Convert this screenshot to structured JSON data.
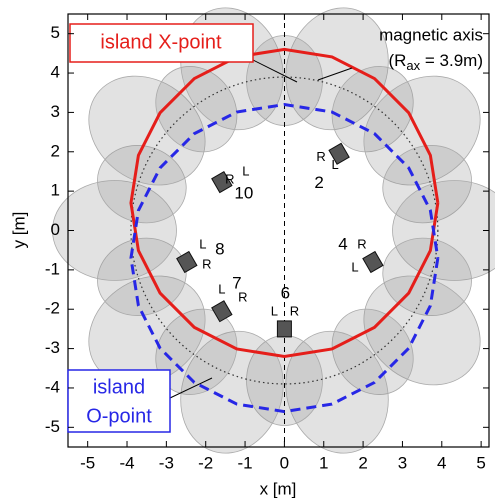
{
  "chart_data": {
    "type": "line",
    "xlabel": "x [m]",
    "ylabel": "y [m]",
    "xlim": [
      -5.5,
      5.2
    ],
    "ylim": [
      -5.5,
      5.5
    ],
    "xticks": [
      -5,
      -4,
      -3,
      -2,
      -1,
      0,
      1,
      2,
      3,
      4,
      5
    ],
    "yticks": [
      -5,
      -4,
      -3,
      -2,
      -1,
      0,
      1,
      2,
      3,
      4,
      5
    ],
    "series": [
      {
        "label_lines": [
          "island X-point"
        ],
        "color": "#e51e1a",
        "style": "solid",
        "x": [
          3.9,
          3.71,
          3.16,
          2.29,
          1.21,
          0,
          -1.21,
          -2.29,
          -3.16,
          -3.71,
          -3.9,
          -3.71,
          -3.16,
          -2.29,
          -1.21,
          0,
          1.21,
          2.29,
          3.16,
          3.71,
          3.9
        ],
        "y": [
          0.7,
          1.91,
          2.99,
          3.86,
          4.41,
          4.6,
          4.41,
          3.86,
          2.99,
          1.91,
          0.7,
          -0.51,
          -1.59,
          -2.46,
          -3.01,
          -3.2,
          -3.01,
          -2.46,
          -1.59,
          -0.51,
          0.7
        ]
      },
      {
        "label_lines": [
          "island",
          "O-point"
        ],
        "color": "#2727e6",
        "style": "dashed",
        "x": [
          3.9,
          3.71,
          3.16,
          2.29,
          1.21,
          0,
          -1.21,
          -2.29,
          -3.16,
          -3.71,
          -3.9,
          -3.71,
          -3.16,
          -2.29,
          -1.21,
          0,
          1.21,
          2.29,
          3.16,
          3.71,
          3.9
        ],
        "y": [
          -0.7,
          -1.91,
          -2.99,
          -3.86,
          -4.41,
          -4.6,
          -4.41,
          -3.86,
          -2.99,
          -1.91,
          -0.7,
          0.51,
          1.59,
          2.46,
          3.01,
          3.2,
          3.01,
          2.46,
          1.59,
          0.51,
          -0.7
        ]
      }
    ],
    "magnetic_axis": {
      "label": "magnetic axis",
      "eq_open": "(R",
      "eq_sub": "ax",
      "eq_rest": " = 3.9m)",
      "radius": 3.9
    },
    "detectors": [
      {
        "label": "10",
        "x": -1.59,
        "y": 1.23,
        "left": "L",
        "right": "R"
      },
      {
        "label": "2",
        "x": 1.39,
        "y": 1.95,
        "left": "L",
        "right": "R"
      },
      {
        "label": "8",
        "x": -2.48,
        "y": -0.8,
        "left": "L",
        "right": "R"
      },
      {
        "label": "4",
        "x": 2.25,
        "y": -0.8,
        "left": "L",
        "right": "R"
      },
      {
        "label": "7",
        "x": -1.59,
        "y": -2.05,
        "left": "L",
        "right": "R"
      },
      {
        "label": "6",
        "x": 0,
        "y": -2.5,
        "left": "L",
        "right": "R"
      }
    ]
  }
}
